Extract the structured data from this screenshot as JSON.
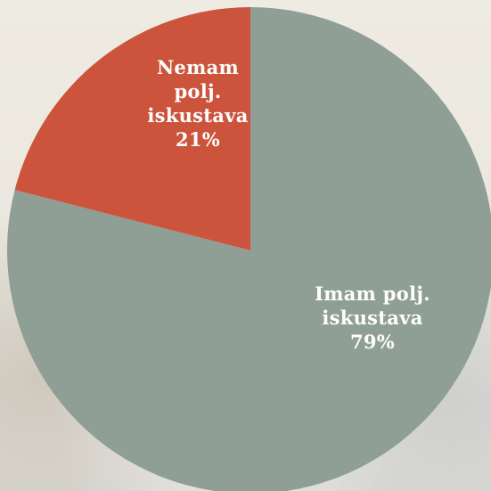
{
  "chart_data": {
    "type": "pie",
    "start_angle_deg": 0,
    "direction": "clockwise",
    "slices": [
      {
        "label_lines": [
          "Imam polj.",
          "iskustava"
        ],
        "percent_label": "79%",
        "value": 79,
        "color": "#909f96"
      },
      {
        "label_lines": [
          "Nemam",
          "polj.",
          "iskustava"
        ],
        "percent_label": "21%",
        "value": 21,
        "color": "#cc543c"
      }
    ]
  }
}
